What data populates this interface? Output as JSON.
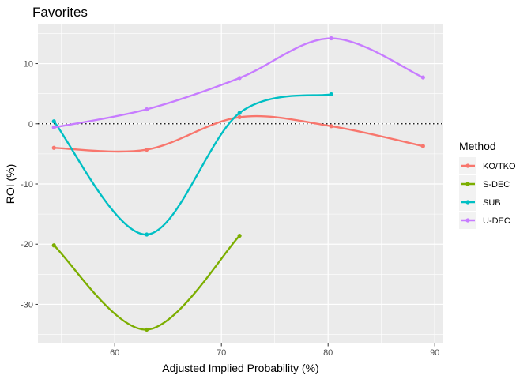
{
  "chart_data": {
    "type": "line",
    "title": "Favorites",
    "xlabel": "Adjusted Implied Probability (%)",
    "ylabel": "ROI (%)",
    "xlim": [
      52.8,
      90.8
    ],
    "ylim": [
      -36.5,
      16.5
    ],
    "x_ticks": [
      60,
      70,
      80,
      90
    ],
    "y_ticks": [
      -30,
      -20,
      -10,
      0,
      10
    ],
    "reference_line": {
      "y": 0,
      "style": "dotted"
    },
    "grid": true,
    "smoothed": true,
    "legend": {
      "title": "Method",
      "placement": "right"
    },
    "series": [
      {
        "name": "KO/TKO",
        "color": "#F8766D",
        "points": [
          [
            54.3,
            -4.0
          ],
          [
            63.0,
            -4.3
          ],
          [
            71.7,
            1.1
          ],
          [
            80.3,
            -0.4
          ],
          [
            88.9,
            -3.7
          ]
        ]
      },
      {
        "name": "S-DEC",
        "color": "#7CAE00",
        "points": [
          [
            54.3,
            -20.2
          ],
          [
            63.0,
            -34.2
          ],
          [
            71.7,
            -18.6
          ]
        ]
      },
      {
        "name": "SUB",
        "color": "#00BFC4",
        "points": [
          [
            54.3,
            0.4
          ],
          [
            63.0,
            -18.4
          ],
          [
            71.7,
            1.8
          ],
          [
            80.3,
            4.9
          ]
        ]
      },
      {
        "name": "U-DEC",
        "color": "#C77CFF",
        "points": [
          [
            54.3,
            -0.6
          ],
          [
            63.0,
            2.4
          ],
          [
            71.7,
            7.6
          ],
          [
            80.3,
            14.2
          ],
          [
            88.9,
            7.7
          ]
        ]
      }
    ]
  }
}
